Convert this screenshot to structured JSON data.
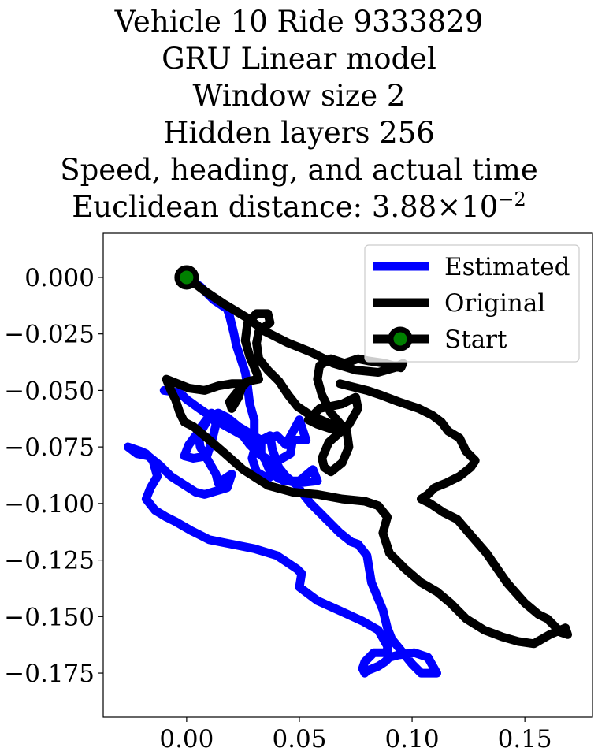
{
  "title": {
    "line1": "Vehicle 10 Ride 9333829",
    "line2": "GRU Linear model",
    "line3": "Window size 2",
    "line4": "Hidden layers 256",
    "line5": "Speed, heading, and actual time",
    "line6_prefix": "Euclidean distance: 3.88×10",
    "line6_exponent": "−2"
  },
  "chart_data": {
    "type": "line",
    "xlim": [
      -0.037,
      0.18
    ],
    "ylim": [
      -0.1945,
      0.0195
    ],
    "xticks": [
      0.0,
      0.05,
      0.1,
      0.15
    ],
    "xtick_labels": [
      "0.00",
      "0.05",
      "0.10",
      "0.15"
    ],
    "yticks": [
      0.0,
      -0.025,
      -0.05,
      -0.075,
      -0.1,
      -0.125,
      -0.15,
      -0.175
    ],
    "ytick_labels": [
      "0.000",
      "−0.025",
      "−0.050",
      "−0.075",
      "−0.100",
      "−0.125",
      "−0.150",
      "−0.175"
    ],
    "grid": false,
    "legend_position": "top-right",
    "legend": [
      {
        "label": "Estimated",
        "color": "#0000ff",
        "marker": "none"
      },
      {
        "label": "Original",
        "color": "#000000",
        "marker": "none"
      },
      {
        "label": "Start",
        "color": "#000000",
        "marker": "circle",
        "marker_face": "#008000"
      }
    ],
    "start": {
      "x": 0.0,
      "y": 0.0,
      "face_color": "#008000",
      "edge_color": "#000000"
    },
    "series": [
      {
        "name": "Estimated",
        "color": "#0000ff",
        "x": [
          0.0,
          0.006,
          0.012,
          0.018,
          0.019,
          0.021,
          0.022,
          0.024,
          0.026,
          0.027,
          0.028,
          0.03,
          0.03,
          0.029,
          0.034,
          0.04,
          0.044,
          0.05,
          0.053,
          0.047,
          0.046,
          0.039,
          0.041,
          0.036,
          0.031,
          0.029,
          0.031,
          0.037,
          0.038,
          0.043,
          0.05,
          0.056,
          0.058,
          0.049,
          0.041,
          0.037,
          0.035,
          0.033,
          0.033,
          0.028,
          0.023,
          0.018,
          0.014,
          0.01,
          0.007,
          0.004,
          0.001,
          -0.001,
          0.003,
          0.009,
          0.011,
          0.013,
          0.011,
          0.005,
          0.006,
          0.013,
          0.014,
          0.02,
          0.018,
          0.008,
          0.004,
          -0.007,
          -0.012,
          -0.017,
          -0.022,
          -0.026,
          -0.02,
          -0.018,
          -0.015,
          -0.013,
          -0.016,
          -0.018,
          -0.014,
          -0.009,
          -0.005,
          0.002,
          0.01,
          0.02,
          0.03,
          0.04,
          0.043,
          0.049,
          0.051,
          0.05,
          0.054,
          0.058,
          0.067,
          0.078,
          0.085,
          0.089,
          0.089,
          0.083,
          0.079,
          0.078,
          0.079,
          0.08,
          0.085,
          0.088,
          0.09,
          0.094,
          0.101,
          0.107,
          0.111,
          0.104,
          0.1,
          0.091,
          0.089,
          0.087,
          0.082,
          0.08,
          0.076,
          0.073,
          0.068,
          0.061,
          0.055,
          0.051,
          0.049,
          0.044,
          0.04,
          0.032,
          0.028,
          0.025,
          0.016,
          0.007,
          0.0,
          -0.003,
          -0.01
        ],
        "y": [
          0.0,
          -0.004,
          -0.01,
          -0.014,
          -0.017,
          -0.025,
          -0.03,
          -0.036,
          -0.042,
          -0.048,
          -0.056,
          -0.063,
          -0.07,
          -0.075,
          -0.072,
          -0.07,
          -0.074,
          -0.063,
          -0.072,
          -0.072,
          -0.078,
          -0.082,
          -0.085,
          -0.089,
          -0.086,
          -0.08,
          -0.073,
          -0.07,
          -0.076,
          -0.09,
          -0.09,
          -0.085,
          -0.09,
          -0.091,
          -0.089,
          -0.086,
          -0.081,
          -0.078,
          -0.072,
          -0.069,
          -0.066,
          -0.062,
          -0.06,
          -0.062,
          -0.067,
          -0.07,
          -0.074,
          -0.079,
          -0.08,
          -0.079,
          -0.073,
          -0.065,
          -0.06,
          -0.068,
          -0.075,
          -0.087,
          -0.091,
          -0.087,
          -0.093,
          -0.096,
          -0.095,
          -0.088,
          -0.083,
          -0.079,
          -0.078,
          -0.075,
          -0.077,
          -0.078,
          -0.081,
          -0.088,
          -0.093,
          -0.098,
          -0.103,
          -0.106,
          -0.108,
          -0.112,
          -0.116,
          -0.118,
          -0.12,
          -0.123,
          -0.125,
          -0.129,
          -0.131,
          -0.137,
          -0.14,
          -0.143,
          -0.147,
          -0.152,
          -0.156,
          -0.163,
          -0.166,
          -0.166,
          -0.17,
          -0.173,
          -0.175,
          -0.174,
          -0.172,
          -0.17,
          -0.168,
          -0.167,
          -0.166,
          -0.168,
          -0.175,
          -0.175,
          -0.171,
          -0.16,
          -0.155,
          -0.147,
          -0.135,
          -0.123,
          -0.118,
          -0.117,
          -0.113,
          -0.106,
          -0.1,
          -0.095,
          -0.092,
          -0.088,
          -0.083,
          -0.078,
          -0.074,
          -0.07,
          -0.065,
          -0.059,
          -0.054,
          -0.051,
          -0.05
        ]
      },
      {
        "name": "Original",
        "color": "#000000",
        "x": [
          0.0,
          0.008,
          0.017,
          0.027,
          0.035,
          0.045,
          0.055,
          0.065,
          0.075,
          0.085,
          0.092,
          0.096,
          0.095,
          0.088,
          0.081,
          0.076,
          0.07,
          0.064,
          0.059,
          0.058,
          0.06,
          0.064,
          0.071,
          0.072,
          0.069,
          0.064,
          0.061,
          0.06,
          0.063,
          0.072,
          0.076,
          0.075,
          0.069,
          0.059,
          0.056,
          0.054,
          0.058,
          0.064,
          0.07,
          0.07,
          0.064,
          0.055,
          0.049,
          0.045,
          0.041,
          0.036,
          0.032,
          0.031,
          0.032,
          0.037,
          0.036,
          0.031,
          0.027,
          0.026,
          0.028,
          0.031,
          0.032,
          0.027,
          0.023,
          0.019,
          0.02,
          0.023,
          0.025,
          0.02,
          0.014,
          0.008,
          0.001,
          -0.009,
          -0.007,
          -0.005,
          -0.003,
          -0.001,
          0.003,
          0.009,
          0.016,
          0.025,
          0.036,
          0.047,
          0.058,
          0.069,
          0.079,
          0.085,
          0.089,
          0.087,
          0.09,
          0.097,
          0.104,
          0.111,
          0.117,
          0.124,
          0.132,
          0.14,
          0.147,
          0.154,
          0.161,
          0.168,
          0.169,
          0.166,
          0.16,
          0.156,
          0.15,
          0.142,
          0.133,
          0.126,
          0.12,
          0.114,
          0.108,
          0.104,
          0.107,
          0.11,
          0.115,
          0.121,
          0.126,
          0.128,
          0.124,
          0.121,
          0.116,
          0.113,
          0.109,
          0.103,
          0.094,
          0.086,
          0.08,
          0.072,
          0.068
        ],
        "y": [
          0.0,
          -0.006,
          -0.012,
          -0.018,
          -0.024,
          -0.029,
          -0.033,
          -0.038,
          -0.041,
          -0.042,
          -0.04,
          -0.038,
          -0.04,
          -0.038,
          -0.037,
          -0.036,
          -0.038,
          -0.036,
          -0.039,
          -0.045,
          -0.052,
          -0.06,
          -0.068,
          -0.075,
          -0.082,
          -0.086,
          -0.084,
          -0.08,
          -0.073,
          -0.065,
          -0.058,
          -0.053,
          -0.056,
          -0.058,
          -0.061,
          -0.063,
          -0.065,
          -0.067,
          -0.067,
          -0.068,
          -0.065,
          -0.061,
          -0.057,
          -0.052,
          -0.046,
          -0.041,
          -0.036,
          -0.029,
          -0.024,
          -0.02,
          -0.016,
          -0.016,
          -0.02,
          -0.028,
          -0.035,
          -0.042,
          -0.045,
          -0.046,
          -0.05,
          -0.055,
          -0.058,
          -0.053,
          -0.047,
          -0.047,
          -0.048,
          -0.05,
          -0.049,
          -0.045,
          -0.05,
          -0.054,
          -0.06,
          -0.064,
          -0.066,
          -0.071,
          -0.077,
          -0.085,
          -0.092,
          -0.095,
          -0.096,
          -0.098,
          -0.099,
          -0.101,
          -0.106,
          -0.113,
          -0.122,
          -0.129,
          -0.135,
          -0.139,
          -0.144,
          -0.151,
          -0.156,
          -0.159,
          -0.161,
          -0.162,
          -0.158,
          -0.155,
          -0.158,
          -0.157,
          -0.151,
          -0.149,
          -0.144,
          -0.135,
          -0.122,
          -0.114,
          -0.107,
          -0.104,
          -0.1,
          -0.098,
          -0.096,
          -0.093,
          -0.091,
          -0.088,
          -0.084,
          -0.081,
          -0.077,
          -0.071,
          -0.068,
          -0.064,
          -0.061,
          -0.058,
          -0.055,
          -0.052,
          -0.05,
          -0.048,
          -0.047
        ]
      }
    ]
  }
}
